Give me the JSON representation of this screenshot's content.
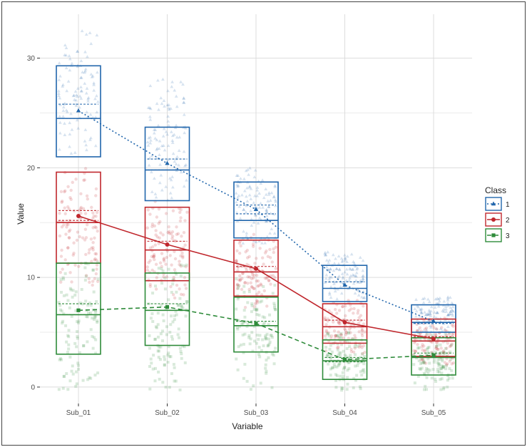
{
  "chart_data": {
    "type": "box",
    "xlabel": "Variable",
    "ylabel": "Value",
    "categories": [
      "Sub_01",
      "Sub_02",
      "Sub_03",
      "Sub_04",
      "Sub_05"
    ],
    "y_ticks": [
      0,
      10,
      20,
      30
    ],
    "ylim": [
      -1.5,
      34
    ],
    "grid": true,
    "legend": {
      "title": "Class",
      "placement": "right"
    },
    "series": [
      {
        "name": "1",
        "color": "#2166ac",
        "line_style": "dotted",
        "marker": "triangle",
        "means": [
          25.2,
          20.4,
          16.2,
          9.3,
          6.0
        ],
        "boxes": [
          {
            "q1": 21.0,
            "median": 24.5,
            "q3": 29.3,
            "mean": 25.2,
            "ci_low": 24.5,
            "ci_high": 25.8
          },
          {
            "q1": 17.0,
            "median": 19.8,
            "q3": 23.7,
            "mean": 20.4,
            "ci_low": 19.8,
            "ci_high": 20.8
          },
          {
            "q1": 13.6,
            "median": 15.2,
            "q3": 18.7,
            "mean": 16.2,
            "ci_low": 15.8,
            "ci_high": 16.6
          },
          {
            "q1": 7.8,
            "median": 9.0,
            "q3": 11.1,
            "mean": 9.3,
            "ci_low": 9.0,
            "ci_high": 9.6
          },
          {
            "q1": 5.0,
            "median": 5.9,
            "q3": 7.5,
            "mean": 6.0,
            "ci_low": 5.8,
            "ci_high": 6.2
          }
        ],
        "points": {
          "min": [
            21,
            17,
            13,
            8,
            5
          ],
          "max": [
            32.5,
            28.3,
            20.3,
            12.3,
            8.3
          ]
        }
      },
      {
        "name": "2",
        "color": "#c0272d",
        "line_style": "solid",
        "marker": "circle",
        "means": [
          15.6,
          13.0,
          10.8,
          5.9,
          4.4
        ],
        "boxes": [
          {
            "q1": 11.3,
            "median": 15.0,
            "q3": 19.6,
            "mean": 15.6,
            "ci_low": 15.2,
            "ci_high": 16.1
          },
          {
            "q1": 9.7,
            "median": 12.5,
            "q3": 16.4,
            "mean": 13.0,
            "ci_low": 12.5,
            "ci_high": 13.3
          },
          {
            "q1": 8.3,
            "median": 10.5,
            "q3": 13.4,
            "mean": 10.8,
            "ci_low": 10.5,
            "ci_high": 11.0
          },
          {
            "q1": 4.0,
            "median": 5.5,
            "q3": 7.6,
            "mean": 5.9,
            "ci_low": 5.5,
            "ci_high": 6.1
          },
          {
            "q1": 2.8,
            "median": 4.2,
            "q3": 6.2,
            "mean": 4.4,
            "ci_low": 4.2,
            "ci_high": 4.6
          }
        ],
        "points": {
          "min": [
            9,
            8,
            7,
            3,
            2
          ],
          "max": [
            20,
            17,
            14,
            8,
            6.5
          ]
        }
      },
      {
        "name": "3",
        "color": "#2e8b3a",
        "line_style": "dashed",
        "marker": "square",
        "means": [
          7.0,
          7.3,
          5.8,
          2.5,
          2.9
        ],
        "boxes": [
          {
            "q1": 3.0,
            "median": 6.6,
            "q3": 11.3,
            "mean": 7.0,
            "ci_low": 6.6,
            "ci_high": 7.6
          },
          {
            "q1": 3.8,
            "median": 7.0,
            "q3": 10.4,
            "mean": 7.3,
            "ci_low": 7.0,
            "ci_high": 7.6
          },
          {
            "q1": 3.2,
            "median": 5.6,
            "q3": 8.2,
            "mean": 5.8,
            "ci_low": 5.6,
            "ci_high": 6.0
          },
          {
            "q1": 0.7,
            "median": 2.4,
            "q3": 4.3,
            "mean": 2.5,
            "ci_low": 2.3,
            "ci_high": 2.7
          },
          {
            "q1": 1.1,
            "median": 2.7,
            "q3": 4.5,
            "mean": 2.9,
            "ci_low": 2.7,
            "ci_high": 3.1
          }
        ],
        "points": {
          "min": [
            -0.3,
            -0.3,
            -0.3,
            -0.3,
            -0.3
          ],
          "max": [
            12,
            11.5,
            10,
            5,
            5
          ]
        }
      }
    ]
  }
}
